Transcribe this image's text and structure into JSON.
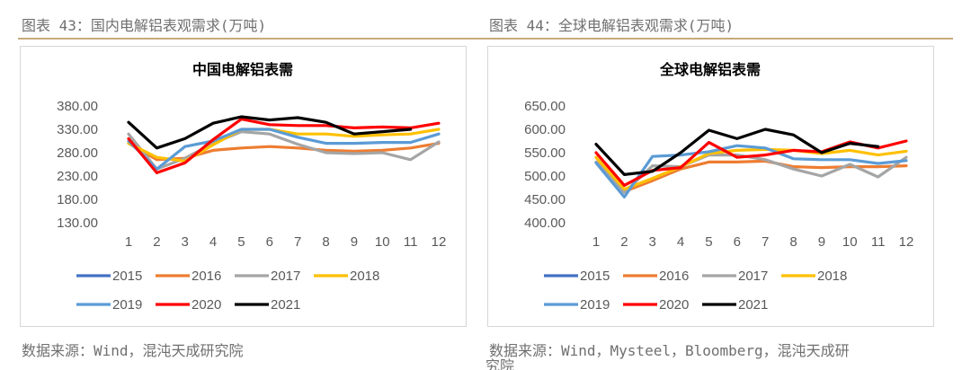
{
  "left": {
    "caption": "图表 43：国内电解铝表观需求(万吨)",
    "source": "数据来源：Wind，混沌天成研究院",
    "source_tail": "",
    "chart_data": {
      "type": "line",
      "title": "中国电解铝表需",
      "xlabel": "",
      "ylabel": "",
      "ylim": [
        130,
        380
      ],
      "yticks": [
        "380.00",
        "330.00",
        "280.00",
        "230.00",
        "180.00",
        "130.00"
      ],
      "categories": [
        "1",
        "2",
        "3",
        "4",
        "5",
        "6",
        "7",
        "8",
        "9",
        "10",
        "11",
        "12"
      ],
      "legend_position": "bottom",
      "series": [
        {
          "name": "2015",
          "color": "#4472C4",
          "values": [
            null,
            null,
            null,
            null,
            null,
            null,
            null,
            null,
            null,
            null,
            null,
            null
          ]
        },
        {
          "name": "2016",
          "color": "#ED7D31",
          "values": [
            300,
            265,
            268,
            285,
            290,
            293,
            290,
            285,
            283,
            285,
            290,
            300
          ]
        },
        {
          "name": "2017",
          "color": "#A5A5A5",
          "values": [
            320,
            245,
            268,
            300,
            325,
            320,
            298,
            280,
            278,
            280,
            265,
            303
          ]
        },
        {
          "name": "2018",
          "color": "#FFC000",
          "values": [
            300,
            270,
            262,
            297,
            330,
            330,
            320,
            320,
            315,
            318,
            320,
            330
          ]
        },
        {
          "name": "2019",
          "color": "#5B9BD5",
          "values": [
            305,
            245,
            293,
            305,
            330,
            330,
            313,
            300,
            300,
            302,
            302,
            320
          ]
        },
        {
          "name": "2020",
          "color": "#FF0000",
          "values": [
            310,
            237,
            258,
            308,
            352,
            340,
            338,
            338,
            333,
            335,
            333,
            343
          ]
        },
        {
          "name": "2021",
          "color": "#000000",
          "values": [
            345,
            290,
            310,
            343,
            357,
            350,
            355,
            345,
            320,
            325,
            330,
            null
          ]
        }
      ]
    }
  },
  "right": {
    "caption": "图表 44：全球电解铝表观需求(万吨)",
    "source": "数据来源：Wind，Mysteel，Bloomberg，混沌天成研",
    "source_tail": "究院",
    "chart_data": {
      "type": "line",
      "title": "全球电解铝表需",
      "xlabel": "",
      "ylabel": "",
      "ylim": [
        400,
        650
      ],
      "yticks": [
        "650.00",
        "600.00",
        "550.00",
        "500.00",
        "450.00",
        "400.00"
      ],
      "categories": [
        "1",
        "2",
        "3",
        "4",
        "5",
        "6",
        "7",
        "8",
        "9",
        "10",
        "11",
        "12"
      ],
      "legend_position": "bottom",
      "series": [
        {
          "name": "2015",
          "color": "#4472C4",
          "values": [
            null,
            null,
            null,
            null,
            null,
            null,
            null,
            null,
            null,
            null,
            null,
            null
          ]
        },
        {
          "name": "2016",
          "color": "#ED7D31",
          "values": [
            540,
            467,
            490,
            515,
            530,
            530,
            532,
            520,
            518,
            520,
            520,
            522
          ]
        },
        {
          "name": "2017",
          "color": "#A5A5A5",
          "values": [
            530,
            465,
            522,
            520,
            545,
            545,
            535,
            515,
            500,
            525,
            498,
            540
          ]
        },
        {
          "name": "2018",
          "color": "#FFC000",
          "values": [
            540,
            472,
            495,
            520,
            548,
            555,
            557,
            555,
            548,
            555,
            545,
            553
          ]
        },
        {
          "name": "2019",
          "color": "#5B9BD5",
          "values": [
            528,
            455,
            542,
            545,
            552,
            565,
            560,
            537,
            535,
            535,
            527,
            533
          ]
        },
        {
          "name": "2020",
          "color": "#FF0000",
          "values": [
            550,
            480,
            512,
            518,
            572,
            540,
            545,
            555,
            552,
            573,
            560,
            575
          ]
        },
        {
          "name": "2021",
          "color": "#000000",
          "values": [
            568,
            503,
            510,
            550,
            598,
            580,
            600,
            588,
            550,
            570,
            563,
            null
          ]
        }
      ]
    }
  }
}
